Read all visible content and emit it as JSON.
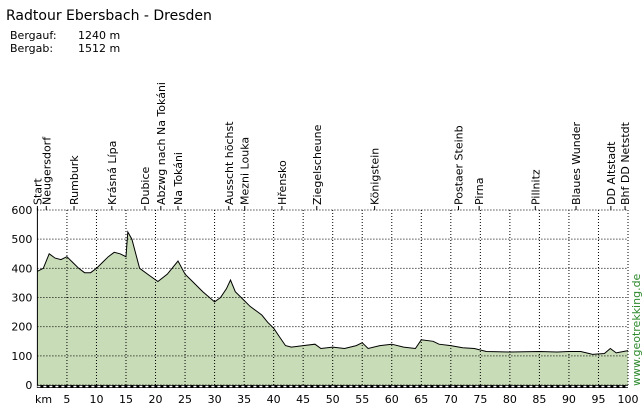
{
  "chart_data": {
    "type": "area",
    "title": "Radtour Ebersbach - Dresden",
    "stats": [
      {
        "label": "Bergauf:",
        "value": "1240 m"
      },
      {
        "label": "Bergab:",
        "value": "1512 m"
      }
    ],
    "xlabel": "km",
    "watermark": "www.geotrekking.de",
    "color": "#c8dcb8",
    "grid": true,
    "xlim": [
      0,
      100
    ],
    "ylim": [
      0,
      600
    ],
    "xticks": [
      5,
      10,
      15,
      20,
      25,
      30,
      35,
      40,
      45,
      50,
      55,
      60,
      65,
      70,
      75,
      80,
      85,
      90,
      95,
      100
    ],
    "yticks": [
      0,
      100,
      200,
      300,
      400,
      500,
      600
    ],
    "waypoints": [
      {
        "label": "Start",
        "x": 0
      },
      {
        "label": "Neugersdorf",
        "x": 1.5
      },
      {
        "label": "Rumburk",
        "x": 6.2
      },
      {
        "label": "Krásná Lípa",
        "x": 12.6
      },
      {
        "label": "Dubice",
        "x": 18.2
      },
      {
        "label": "Abzwg nach Na Tokáni",
        "x": 20.9
      },
      {
        "label": "Na Tokáni",
        "x": 23.8
      },
      {
        "label": "Ausscht höchst",
        "x": 32.4
      },
      {
        "label": "Mezni Louka",
        "x": 35.1
      },
      {
        "label": "Hřensko",
        "x": 41.4
      },
      {
        "label": "Ziegelscheune",
        "x": 47.3
      },
      {
        "label": "Königstein",
        "x": 57.1
      },
      {
        "label": "Postaer Steinb",
        "x": 71.3
      },
      {
        "label": "Pirna",
        "x": 74.8
      },
      {
        "label": "Pillnitz",
        "x": 84.3
      },
      {
        "label": "Blaues Wunder",
        "x": 91.2
      },
      {
        "label": "DD Altstadt",
        "x": 97.1
      },
      {
        "label": "Bhf DD Netstdt",
        "x": 99.5
      }
    ],
    "x": [
      0,
      1,
      2,
      3,
      4,
      5,
      6,
      7,
      8,
      9,
      10,
      11,
      12,
      13,
      14,
      15,
      15.3,
      16,
      17.3,
      19,
      20.4,
      22,
      23.8,
      25,
      26,
      28,
      30,
      31,
      32,
      32.7,
      33.5,
      35,
      36,
      37,
      38,
      39,
      40,
      41,
      42,
      43,
      45,
      47,
      48,
      50,
      52,
      54,
      55,
      56,
      58,
      60,
      62,
      64,
      65,
      67,
      68,
      70,
      72,
      74,
      76,
      80,
      85,
      88,
      90,
      92,
      94,
      96,
      97,
      98,
      100
    ],
    "values": [
      390,
      400,
      450,
      435,
      430,
      440,
      420,
      400,
      385,
      385,
      400,
      420,
      440,
      455,
      450,
      440,
      525,
      500,
      400,
      375,
      355,
      380,
      425,
      380,
      360,
      320,
      285,
      300,
      330,
      360,
      320,
      290,
      270,
      255,
      240,
      215,
      195,
      165,
      135,
      130,
      135,
      140,
      125,
      130,
      125,
      135,
      145,
      125,
      135,
      140,
      130,
      125,
      155,
      150,
      140,
      135,
      128,
      125,
      115,
      113,
      115,
      113,
      115,
      115,
      105,
      108,
      125,
      110,
      118
    ]
  }
}
